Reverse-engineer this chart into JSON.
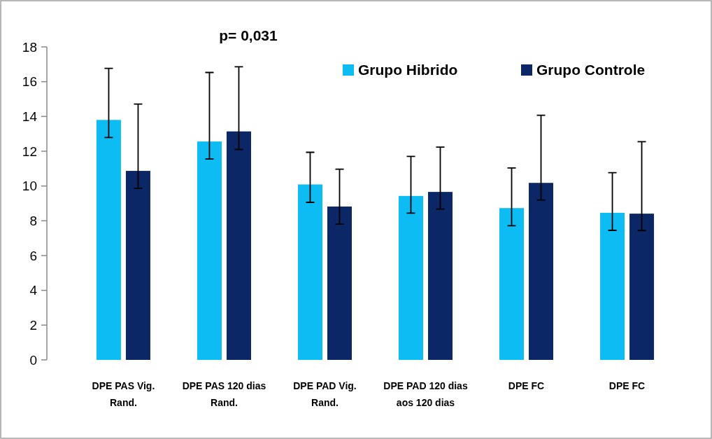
{
  "chart_data": {
    "type": "bar",
    "categories": [
      "DPE PAS Vig.\nRand.",
      "DPE PAS 120 dias\nRand.",
      "DPE PAD Vig.\nRand.",
      "DPE PAD 120 dias\naos 120 dias",
      "DPE FC",
      "DPE FC"
    ],
    "series": [
      {
        "name": "Grupo Hibrido",
        "color": "#0dbcf3",
        "values": [
          13.8,
          12.56,
          10.09,
          9.43,
          8.73,
          8.46
        ],
        "errors": [
          [
            12.79,
            16.77
          ],
          [
            11.55,
            16.53
          ],
          [
            9.06,
            11.94
          ],
          [
            8.44,
            11.7
          ],
          [
            7.72,
            11.04
          ],
          [
            7.45,
            10.77
          ]
        ]
      },
      {
        "name": "Grupo Controle",
        "color": "#0b2765",
        "values": [
          10.87,
          13.14,
          8.82,
          9.66,
          10.18,
          8.41
        ],
        "errors": [
          [
            9.87,
            14.71
          ],
          [
            12.1,
            16.86
          ],
          [
            7.81,
            10.97
          ],
          [
            8.67,
            12.24
          ],
          [
            9.2,
            14.07
          ],
          [
            7.44,
            12.55
          ]
        ]
      }
    ],
    "ylim": [
      0,
      18
    ],
    "yticks": [
      0,
      2,
      4,
      6,
      8,
      10,
      12,
      14,
      16,
      18
    ],
    "grid": false,
    "legend": "top",
    "annotations": [
      "p= 0,031"
    ]
  }
}
